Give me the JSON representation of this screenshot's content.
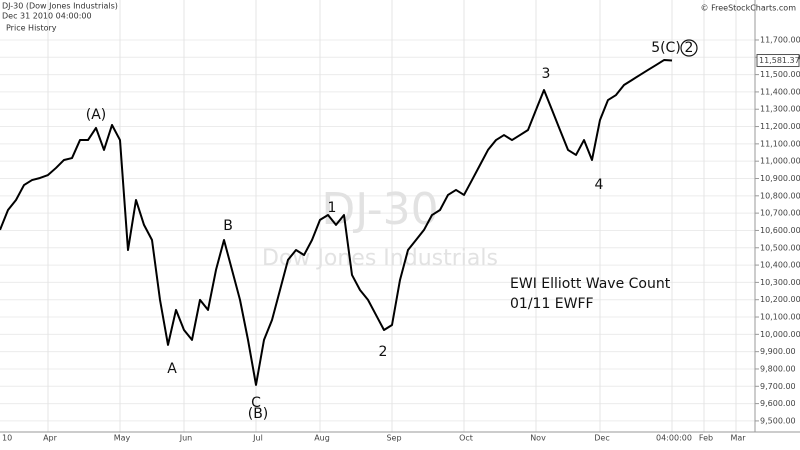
{
  "chart_data": {
    "type": "line",
    "title": "DJ-30 (Dow Jones Industrials)",
    "subtitle": "Dec 31 2010 04:00:00",
    "panel_label": "Price History",
    "copyright": "© FreeStockCharts.com",
    "watermark": "DJ-30",
    "watermark_subtitle": "Dow Jones Industrials",
    "note_lines": [
      "EWI Elliott Wave Count",
      "01/11 EWFF"
    ],
    "wave_labels": [
      "(A)",
      "A",
      "B",
      "C",
      "(B)",
      "1",
      "2",
      "3",
      "4",
      "5(C)",
      "2"
    ],
    "categories": [
      "10",
      null,
      null,
      null,
      null,
      null,
      "Apr",
      null,
      null,
      null,
      null,
      null,
      null,
      null,
      null,
      "May",
      null,
      null,
      null,
      null,
      null,
      null,
      null,
      "Jun",
      null,
      null,
      null,
      null,
      null,
      null,
      null,
      null,
      "Jul",
      null,
      null,
      null,
      null,
      null,
      null,
      null,
      "Aug",
      null,
      null,
      null,
      null,
      null,
      null,
      null,
      null,
      "Sep",
      null,
      null,
      null,
      null,
      null,
      null,
      null,
      null,
      "Oct",
      null,
      null,
      null,
      null,
      null,
      null,
      null,
      null,
      "Nov",
      null,
      null,
      null,
      null,
      null,
      null,
      null,
      "Dec",
      null,
      null,
      null,
      null,
      null,
      null,
      null,
      null,
      "04:00:00",
      null,
      null,
      null,
      "Feb",
      null,
      null,
      null,
      "Mar",
      null
    ],
    "series": [
      {
        "name": "DJ-30",
        "color": "#000000",
        "values": [
          10603,
          10718,
          10776,
          10862,
          10891,
          10903,
          10920,
          10961,
          11007,
          11018,
          11122,
          11122,
          11192,
          11065,
          11209,
          11122,
          10487,
          10776,
          10632,
          10545,
          10199,
          9939,
          10141,
          10025,
          9968,
          10199,
          10141,
          10372,
          10545,
          10372,
          10199,
          9968,
          9708,
          9968,
          10083,
          10256,
          10430,
          10487,
          10458,
          10545,
          10661,
          10689,
          10632,
          10689,
          10343,
          10256,
          10199,
          10112,
          10025,
          10054,
          10314,
          10487,
          10545,
          10603,
          10689,
          10718,
          10805,
          10834,
          10805,
          10891,
          10978,
          11065,
          11122,
          11151,
          11122,
          11151,
          11180,
          11296,
          11411,
          11296,
          11180,
          11065,
          11036,
          11122,
          11007,
          11238,
          11353,
          11382,
          11440,
          11469,
          11498,
          11527,
          11555,
          11584,
          11581.37,
          null,
          null,
          null,
          null,
          null,
          null,
          null,
          null,
          null
        ]
      }
    ],
    "last_price": {
      "value": 11581.37,
      "label": "11,581.37"
    },
    "ylim": [
      9436,
      11850
    ],
    "yticks": [
      {
        "value": 9500,
        "label": "9,500.00"
      },
      {
        "value": 9600,
        "label": "9,600.00"
      },
      {
        "value": 9700,
        "label": "9,700.00"
      },
      {
        "value": 9800,
        "label": "9,800.00"
      },
      {
        "value": 9900,
        "label": "9,900.00"
      },
      {
        "value": 10000,
        "label": "10,000.00"
      },
      {
        "value": 10100,
        "label": "10,100.00"
      },
      {
        "value": 10200,
        "label": "10,200.00"
      },
      {
        "value": 10300,
        "label": "10,300.00"
      },
      {
        "value": 10400,
        "label": "10,400.00"
      },
      {
        "value": 10500,
        "label": "10,500.00"
      },
      {
        "value": 10600,
        "label": "10,600.00"
      },
      {
        "value": 10700,
        "label": "10,700.00"
      },
      {
        "value": 10800,
        "label": "10,800.00"
      },
      {
        "value": 10900,
        "label": "10,900.00"
      },
      {
        "value": 11000,
        "label": "11,000.00"
      },
      {
        "value": 11100,
        "label": "11,100.00"
      },
      {
        "value": 11200,
        "label": "11,200.00"
      },
      {
        "value": 11300,
        "label": "11,300.00"
      },
      {
        "value": 11400,
        "label": "11,400.00"
      },
      {
        "value": 11500,
        "label": "11,500.00"
      },
      {
        "value": 11600,
        "label": "11,600.00"
      },
      {
        "value": 11700,
        "label": "11,700.00"
      }
    ],
    "grid": true
  }
}
